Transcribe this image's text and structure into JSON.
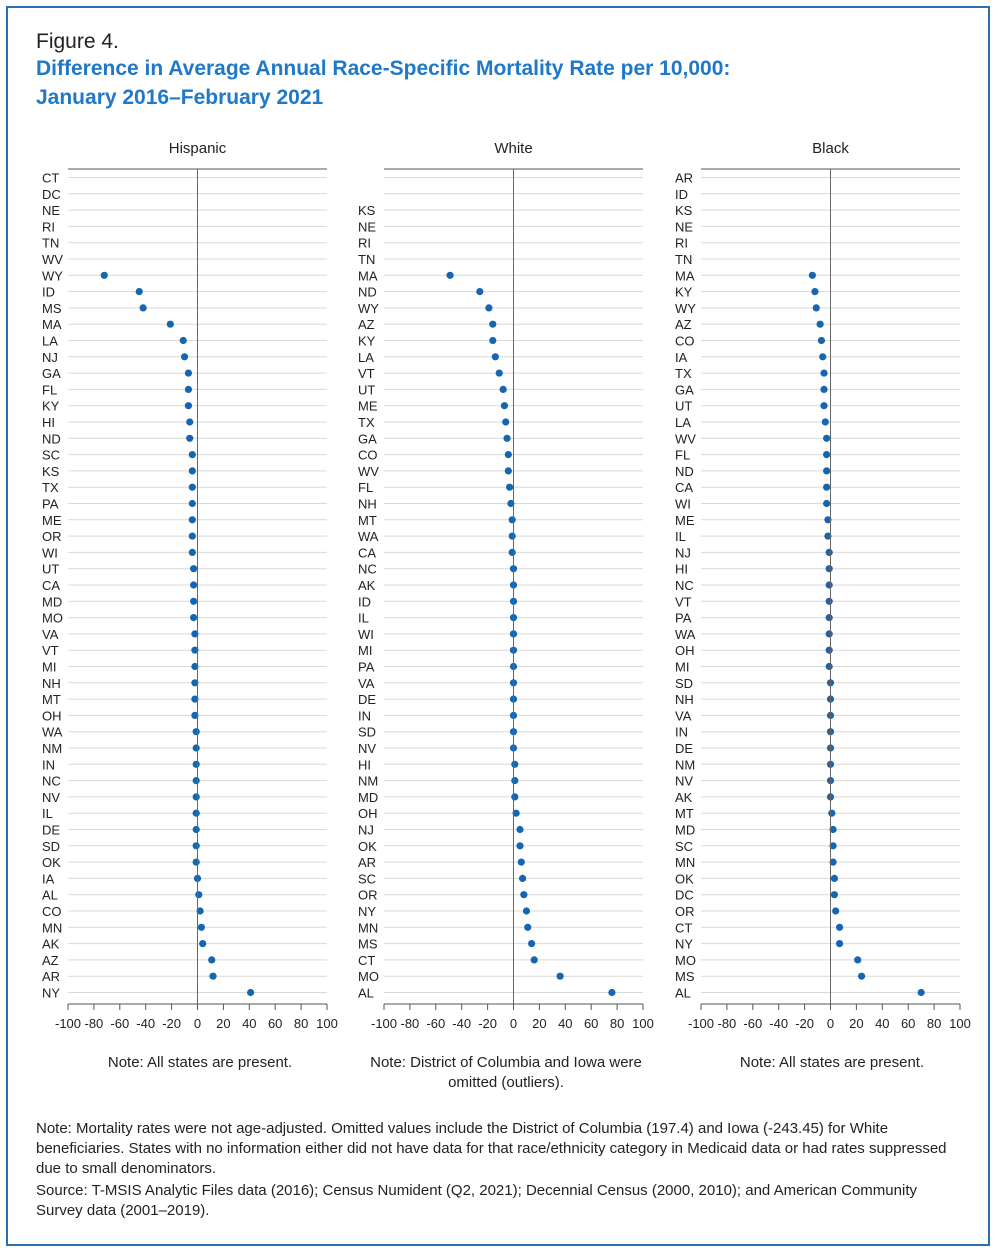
{
  "figure_label": "Figure 4.",
  "title_line1": "Difference in Average Annual Race-Specific Mortality Rate per 10,000:",
  "title_line2": "January 2016–February 2021",
  "colors": {
    "title": "#1f78c8",
    "dot": "#1565b0",
    "border": "#2a6fb0",
    "grid": "#d9d9d9"
  },
  "chart_data": [
    {
      "type": "scatter",
      "title": "Hispanic",
      "xlim": [
        -100,
        100
      ],
      "xticks": [
        -100,
        -80,
        -60,
        -40,
        -20,
        0,
        20,
        40,
        60,
        80,
        100
      ],
      "grid": true,
      "note": "Note: All states are present.",
      "categories": [
        "CT",
        "DC",
        "NE",
        "RI",
        "TN",
        "WV",
        "WY",
        "ID",
        "MS",
        "MA",
        "LA",
        "NJ",
        "GA",
        "FL",
        "KY",
        "HI",
        "ND",
        "SC",
        "KS",
        "TX",
        "PA",
        "ME",
        "OR",
        "WI",
        "UT",
        "CA",
        "MD",
        "MO",
        "VA",
        "VT",
        "MI",
        "NH",
        "MT",
        "OH",
        "WA",
        "NM",
        "IN",
        "NC",
        "NV",
        "IL",
        "DE",
        "SD",
        "OK",
        "IA",
        "AL",
        "CO",
        "MN",
        "AK",
        "AZ",
        "AR",
        "NY"
      ],
      "values": [
        null,
        null,
        null,
        null,
        null,
        null,
        -72,
        -45,
        -42,
        -21,
        -11,
        -10,
        -7,
        -7,
        -7,
        -6,
        -6,
        -4,
        -4,
        -4,
        -4,
        -4,
        -4,
        -4,
        -3,
        -3,
        -3,
        -3,
        -2,
        -2,
        -2,
        -2,
        -2,
        -2,
        -1,
        -1,
        -1,
        -1,
        -1,
        -1,
        -1,
        -1,
        -1,
        0,
        1,
        2,
        3,
        4,
        11,
        12,
        41
      ]
    },
    {
      "type": "scatter",
      "title": "White",
      "xlim": [
        -100,
        100
      ],
      "xticks": [
        -100,
        -80,
        -60,
        -40,
        -20,
        0,
        20,
        40,
        60,
        80,
        100
      ],
      "grid": true,
      "note": "Note: District of Columbia and Iowa were omitted (outliers).",
      "categories": [
        "",
        "",
        "KS",
        "NE",
        "RI",
        "TN",
        "MA",
        "ND",
        "WY",
        "AZ",
        "KY",
        "LA",
        "VT",
        "UT",
        "ME",
        "TX",
        "GA",
        "CO",
        "WV",
        "FL",
        "NH",
        "MT",
        "WA",
        "CA",
        "NC",
        "AK",
        "ID",
        "IL",
        "WI",
        "MI",
        "PA",
        "VA",
        "DE",
        "IN",
        "SD",
        "NV",
        "HI",
        "NM",
        "MD",
        "OH",
        "NJ",
        "OK",
        "AR",
        "SC",
        "OR",
        "NY",
        "MN",
        "MS",
        "CT",
        "MO",
        "AL"
      ],
      "values": [
        null,
        null,
        null,
        null,
        null,
        null,
        -49,
        -26,
        -19,
        -16,
        -16,
        -14,
        -11,
        -8,
        -7,
        -6,
        -5,
        -4,
        -4,
        -3,
        -2,
        -1,
        -1,
        -1,
        0,
        0,
        0,
        0,
        0,
        0,
        0,
        0,
        0,
        0,
        0,
        0,
        1,
        1,
        1,
        2,
        5,
        5,
        6,
        7,
        8,
        10,
        11,
        14,
        16,
        36,
        76
      ]
    },
    {
      "type": "scatter",
      "title": "Black",
      "xlim": [
        -100,
        100
      ],
      "xticks": [
        -100,
        -80,
        -60,
        -40,
        -20,
        0,
        20,
        40,
        60,
        80,
        100
      ],
      "grid": true,
      "note": "Note: All states are present.",
      "categories": [
        "AR",
        "ID",
        "KS",
        "NE",
        "RI",
        "TN",
        "MA",
        "KY",
        "WY",
        "AZ",
        "CO",
        "IA",
        "TX",
        "GA",
        "UT",
        "LA",
        "WV",
        "FL",
        "ND",
        "CA",
        "WI",
        "ME",
        "IL",
        "NJ",
        "HI",
        "NC",
        "VT",
        "PA",
        "WA",
        "OH",
        "MI",
        "SD",
        "NH",
        "VA",
        "IN",
        "DE",
        "NM",
        "NV",
        "AK",
        "MT",
        "MD",
        "SC",
        "MN",
        "OK",
        "DC",
        "OR",
        "CT",
        "NY",
        "MO",
        "MS",
        "AL"
      ],
      "values": [
        null,
        null,
        null,
        null,
        null,
        null,
        -14,
        -12,
        -11,
        -8,
        -7,
        -6,
        -5,
        -5,
        -5,
        -4,
        -3,
        -3,
        -3,
        -3,
        -3,
        -2,
        -2,
        -1,
        -1,
        -1,
        -1,
        -1,
        -1,
        -1,
        -1,
        0,
        0,
        0,
        0,
        0,
        0,
        0,
        0,
        1,
        2,
        2,
        2,
        3,
        3,
        4,
        7,
        7,
        21,
        24,
        70
      ]
    }
  ],
  "footnote_note": "Note: Mortality rates were not age-adjusted. Omitted values include the District of Columbia (197.4) and Iowa (-243.45) for White beneficiaries. States with no information either did not have data for that race/ethnicity category in Medicaid data or had rates suppressed due to small denominators.",
  "footnote_source": "Source: T-MSIS Analytic Files data (2016); Census Numident (Q2, 2021); Decennial Census (2000, 2010); and American Community Survey data (2001–2019)."
}
